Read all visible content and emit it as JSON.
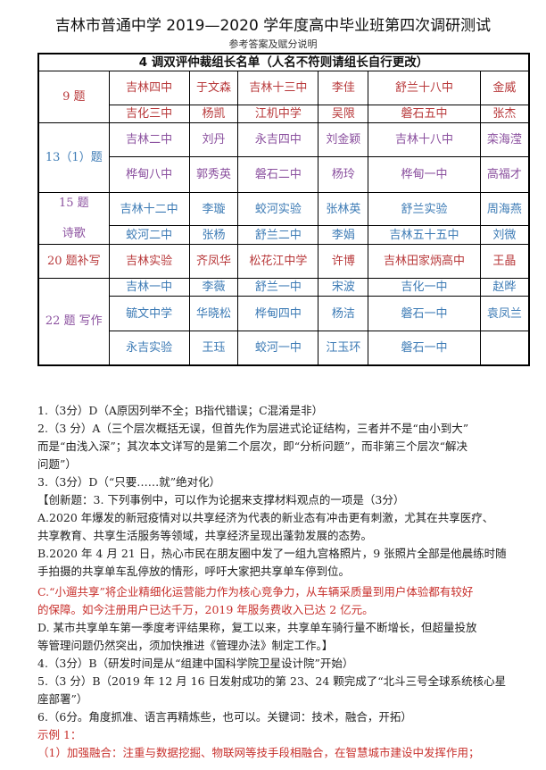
{
  "header": {
    "title": "吉林市普通中学 2019—2020 学年度高中毕业班第四次调研测试",
    "subtitle": "参考答案及赋分说明"
  },
  "table": {
    "caption": "4 调双评仲裁组长名单（人名不符则请组长自行更改）",
    "groups": [
      {
        "label": "9 题",
        "color": "red",
        "rows": [
          [
            "吉林四中",
            "于文森",
            "吉林十三中",
            "李佳",
            "舒兰十八中",
            "金威"
          ],
          [
            "吉化三中",
            "杨凯",
            "江机中学",
            "吴限",
            "磐石五中",
            "张杰"
          ]
        ]
      },
      {
        "label": "13（1）题",
        "color": "purple",
        "rows": [
          [
            "吉林二中",
            "刘丹",
            "永吉四中",
            "刘金颖",
            "吉林十八中",
            "栾海滢"
          ],
          [
            "桦甸八中",
            "郭秀英",
            "磐石二中",
            "杨玲",
            "桦甸一中",
            "高福才"
          ]
        ]
      },
      {
        "label": "15 题\n\n诗歌",
        "color": "blue",
        "rows": [
          [
            "吉林十二中",
            "李璇",
            "蛟河实验",
            "张林英",
            "舒兰实验",
            "周海燕"
          ],
          [
            "蛟河二中",
            "张杨",
            "舒兰二中",
            "李娟",
            "吉林五十五中",
            "刘微"
          ]
        ]
      },
      {
        "label": "20 题补写",
        "color": "red",
        "rows": [
          [
            "吉林实验",
            "齐凤华",
            "松花江中学",
            "许博",
            "吉林田家炳高中",
            "王晶"
          ]
        ]
      },
      {
        "label": "22 题  写作",
        "color": "blue",
        "rows": [
          [
            "吉林一中",
            "李薇",
            "舒兰一中",
            "宋波",
            "吉化一中",
            "赵晔"
          ],
          [
            "毓文中学",
            "华晓松",
            "桦甸四中",
            "杨洁",
            "磐石一中",
            "袁凤兰"
          ],
          [
            "永吉实验",
            "王珏",
            "蛟河一中",
            "江玉环",
            "磐石一中",
            ""
          ]
        ]
      }
    ]
  },
  "lines": [
    {
      "t": "1.（3分）D（A原因列举不全；B指代错误；C混淆是非）"
    },
    {
      "t": "2.（3 分）A（三个层次概括无误，但首先作为层进式论证结构，三者并不是“由小到大”"
    },
    {
      "t": "而是“由浅入深”；其次本文详写的是第二个层次，即“分析问题”，而非第三个层次“解决"
    },
    {
      "t": "问题”）"
    },
    {
      "t": "3.（3分）D（“只要……就”绝对化）"
    },
    {
      "t": "【创新题：3. 下列事例中，可以作为论据来支撑材料观点的一项是（3分）"
    },
    {
      "t": "A.2020 年爆发的新冠疫情对以共享经济为代表的新业态有冲击更有刺激，尤其在共享医疗、"
    },
    {
      "t": "共享教育、共享生活服务等领域，共享经济呈现出蓬勃发展的态势。"
    },
    {
      "t": "B.2020 年 4 月 21 日，热心市民在朋友圈中发了一组九宫格照片，9 张照片全部是他晨练时随"
    },
    {
      "t": "手拍摄的共享单车乱停放的情形，呼吁大家把共享单车停到位。"
    },
    {
      "t": "C.“小遛共享”将企业精细化运营能力作为核心竞争力，从车辆采质量到用户体验都有较好",
      "red": true
    },
    {
      "t": "的保障。如今注册用户已达千万，2019 年服务费收入已达 2 亿元。",
      "red": true
    },
    {
      "t": "D. 某市共享单车第一季度考评结果称，复工以来，共享单车骑行量不断增长，但超量投放"
    },
    {
      "t": "等管理问题仍然突出，须加快推进《管理办法》制定工作。】"
    },
    {
      "t": "4.（3分）B（研发时间是从“组建中国科学院卫星设计院”开始）"
    },
    {
      "t": "5.（3 分）B（2019 年 12 月 16 日发射成功的第 23、24 颗完成了“北斗三号全球系统核心星"
    },
    {
      "t": "座部署”）"
    },
    {
      "t": "6.（6分。角度抓准、语言再精炼些，也可以。关键词：技术，融合，开拓）"
    },
    {
      "t": "示例 1：",
      "red": true
    },
    {
      "t": "（1）加强融合：注重与数据挖掘、物联网等技手段相融合，在智慧城市建设中发挥作用；",
      "red": true
    }
  ],
  "colors": {
    "red": "#b8383a",
    "purple": "#8a4f9e",
    "blue": "#3d7bb5"
  }
}
